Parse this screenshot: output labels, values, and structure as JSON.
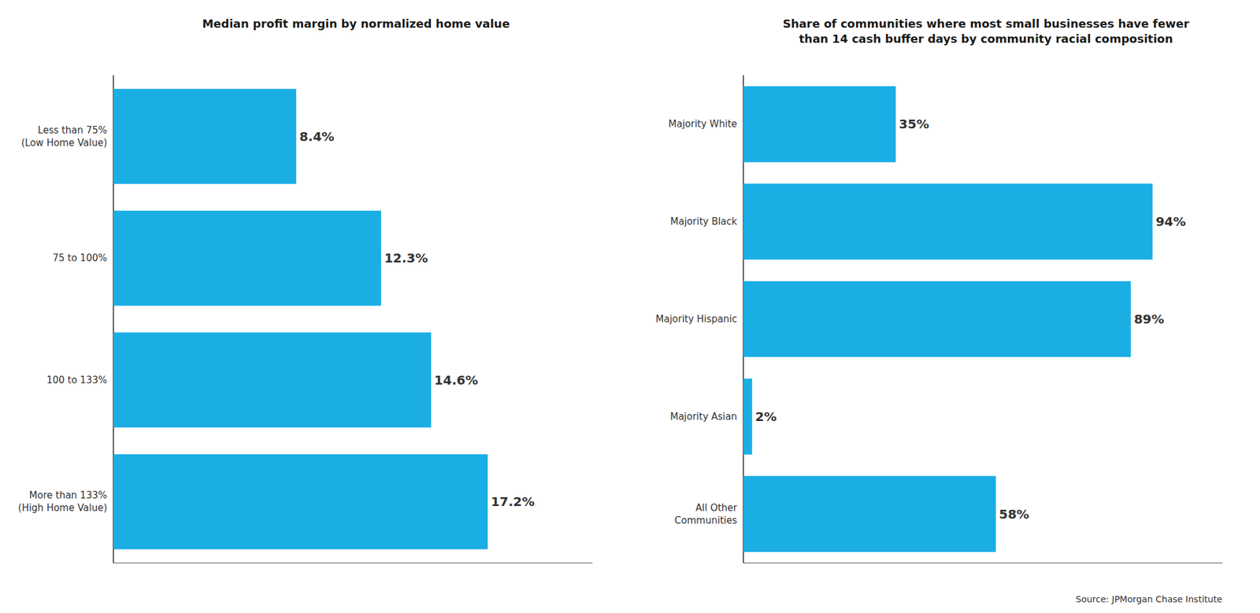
{
  "chart_data": [
    {
      "type": "bar",
      "orientation": "horizontal",
      "title": "Median profit margin by normalized home value",
      "categories": [
        "Less than 75%\n(Low Home Value)",
        "75 to 100%",
        "100 to 133%",
        "More than 133%\n(High Home Value)"
      ],
      "values": [
        8.4,
        12.3,
        14.6,
        17.2
      ],
      "value_labels": [
        "8.4%",
        "12.3%",
        "14.6%",
        "17.2%"
      ],
      "xlim": [
        0,
        22
      ],
      "xticks": [],
      "color": "#1aaee5",
      "data_labels": true,
      "tick_labels": "y",
      "grid": false
    },
    {
      "type": "bar",
      "orientation": "horizontal",
      "title": "Share of communities where most small businesses have fewer\nthan 14 cash buffer days by community racial composition",
      "categories": [
        "Majority White",
        "Majority Black",
        "Majority Hispanic",
        "Majority Asian",
        "All Other\nCommunities"
      ],
      "values": [
        35,
        94,
        89,
        2,
        58
      ],
      "value_labels": [
        "35%",
        "94%",
        "89%",
        "2%",
        "58%"
      ],
      "xlim": [
        0,
        110
      ],
      "xticks": [],
      "color": "#1aaee5",
      "data_labels": true,
      "tick_labels": "y",
      "grid": false,
      "annotations": [
        "Source: JPMorgan Chase Institute"
      ]
    }
  ]
}
